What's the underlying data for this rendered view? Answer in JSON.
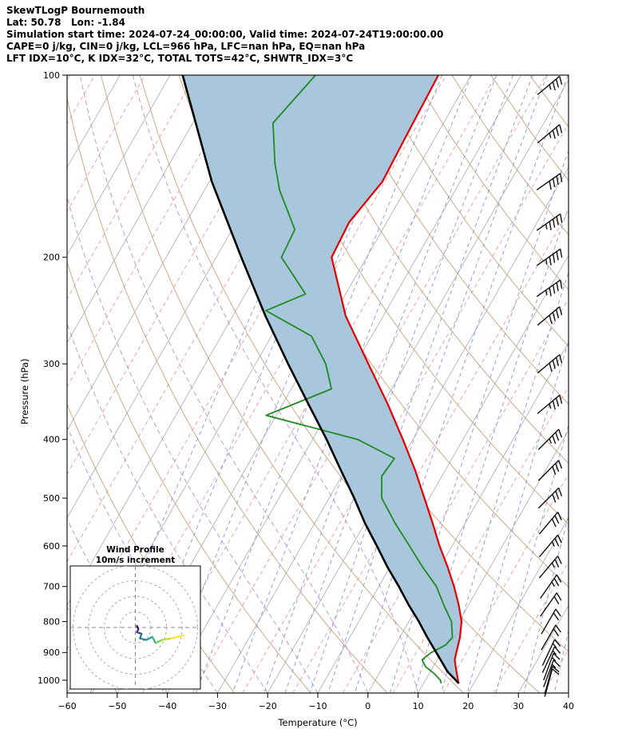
{
  "header": {
    "lines": [
      "SkewTLogP Bournemouth",
      "Lat: 50.78   Lon: -1.84",
      "Simulation start time: 2024-07-24_00:00:00, Valid time: 2024-07-24T19:00:00.00",
      "CAPE=0 j/kg, CIN=0 j/kg, LCL=966 hPa, LFC=nan hPa, EQ=nan hPa",
      "LFT IDX=10°C, K IDX=32°C, TOTAL TOTS=42°C, SHWTR_IDX=3°C"
    ]
  },
  "chart_data": {
    "type": "skewt-logp",
    "xlabel": "Temperature (°C)",
    "ylabel": "Pressure (hPa)",
    "x_ticks": [
      -60,
      -50,
      -40,
      -30,
      -20,
      -10,
      0,
      10,
      20,
      30,
      40
    ],
    "y_ticks": [
      100,
      200,
      300,
      400,
      500,
      600,
      700,
      800,
      900,
      1000
    ],
    "t_range": [
      -60,
      40
    ],
    "p_range": [
      100,
      1050
    ],
    "skew_factor": 30,
    "colors": {
      "temperature": "#e60000",
      "dewpoint": "#1f8a1f",
      "parcel": "#000000",
      "shading": "#a8c6dc",
      "isotherm": "#b3b3b3",
      "isotherm_minor": "#e59090",
      "dry_adiabat": "#c59a72",
      "moist_adiabat": "#a96bc5",
      "mixing_ratio": "#7c8fd6",
      "wind_barb": "#111111"
    },
    "background": {
      "isotherms_c": {
        "min": -130,
        "max": 40,
        "step": 10
      },
      "isotherms_minor_c": {
        "min": -125,
        "max": 35,
        "step": 10
      },
      "dry_adiabats_theta_c": [
        -30,
        -15,
        0,
        15,
        30,
        45,
        60,
        75,
        90,
        105,
        120,
        135,
        150,
        165,
        180,
        195
      ],
      "moist_adiabats_start_c": [
        -60,
        -50,
        -40,
        -30,
        -20,
        -10,
        0,
        10
      ],
      "mixing_ratio_g_kg": [
        0.02,
        0.05,
        0.1,
        0.2,
        0.4,
        0.7,
        1,
        1.5,
        2,
        3,
        5,
        7,
        10,
        14,
        20,
        28,
        40
      ]
    },
    "temperature_profile": {
      "pressure_hpa": [
        1012,
        1000,
        975,
        950,
        925,
        900,
        850,
        800,
        750,
        700,
        650,
        600,
        550,
        500,
        450,
        400,
        350,
        300,
        250,
        200,
        175,
        150,
        125,
        100
      ],
      "temp_c": [
        17.0,
        16.5,
        15.5,
        14.5,
        13.5,
        13.0,
        12.0,
        10.5,
        8.0,
        5.0,
        1.5,
        -2.5,
        -6.5,
        -11.0,
        -16.0,
        -22.0,
        -29.0,
        -37.5,
        -47.5,
        -57.0,
        -57.5,
        -55.5,
        -56.0,
        -56.5
      ]
    },
    "dewpoint_profile": {
      "pressure_hpa": [
        1012,
        1000,
        975,
        950,
        925,
        900,
        875,
        850,
        800,
        750,
        700,
        650,
        600,
        550,
        500,
        460,
        430,
        400,
        365,
        330,
        300,
        270,
        245,
        230,
        200,
        180,
        155,
        140,
        120,
        100
      ],
      "dewpoint_c": [
        13.5,
        13.0,
        11.0,
        8.5,
        7.0,
        8.0,
        10.0,
        10.5,
        8.5,
        5.0,
        1.5,
        -3.5,
        -8.5,
        -14.0,
        -19.5,
        -22.0,
        -21.5,
        -31.0,
        -52.0,
        -42.0,
        -46.0,
        -52.0,
        -64.0,
        -58.0,
        -67.0,
        -67.5,
        -75.0,
        -79.0,
        -84.0,
        -81.0
      ]
    },
    "parcel_path": {
      "pressure_hpa": [
        1012,
        966,
        950,
        900,
        850,
        800,
        750,
        700,
        650,
        600,
        550,
        500,
        450,
        400,
        350,
        300,
        250,
        200,
        150,
        100
      ],
      "temp_c": [
        17.0,
        13.3,
        12.3,
        9.0,
        5.5,
        2.0,
        -2.0,
        -6.0,
        -10.5,
        -15.0,
        -20.0,
        -25.0,
        -30.8,
        -37.2,
        -44.8,
        -53.5,
        -63.5,
        -75.0,
        -89.5,
        -107.5
      ]
    },
    "wind_barbs": {
      "pressure_hpa": [
        1010,
        1000,
        975,
        950,
        925,
        900,
        850,
        800,
        750,
        700,
        650,
        600,
        550,
        500,
        450,
        400,
        350,
        300,
        250,
        225,
        200,
        175,
        150,
        125,
        104
      ],
      "speed_kt": [
        10,
        10,
        15,
        15,
        15,
        15,
        20,
        20,
        20,
        25,
        25,
        25,
        30,
        30,
        30,
        35,
        35,
        40,
        40,
        45,
        45,
        45,
        40,
        35,
        35
      ],
      "direction_deg": [
        195,
        195,
        200,
        200,
        205,
        205,
        210,
        210,
        215,
        215,
        220,
        220,
        220,
        225,
        225,
        225,
        230,
        230,
        230,
        235,
        235,
        235,
        235,
        230,
        230
      ]
    },
    "hodograph": {
      "title": "Wind Profile",
      "subtitle": "10m/s increment",
      "ring_interval_ms": 10,
      "rings_ms": [
        10,
        20,
        30,
        40
      ],
      "u_ms": [
        1,
        2,
        1,
        4,
        3,
        7,
        11,
        13,
        17,
        23,
        31
      ],
      "v_ms": [
        1,
        -1,
        -3,
        -4,
        -7,
        -8,
        -6,
        -10,
        -8,
        -7,
        -5
      ],
      "palette": [
        "#440154",
        "#482878",
        "#3e4989",
        "#31688e",
        "#26828e",
        "#1f9e89",
        "#35b779",
        "#6ece58",
        "#b5de2b",
        "#fde725"
      ]
    }
  }
}
